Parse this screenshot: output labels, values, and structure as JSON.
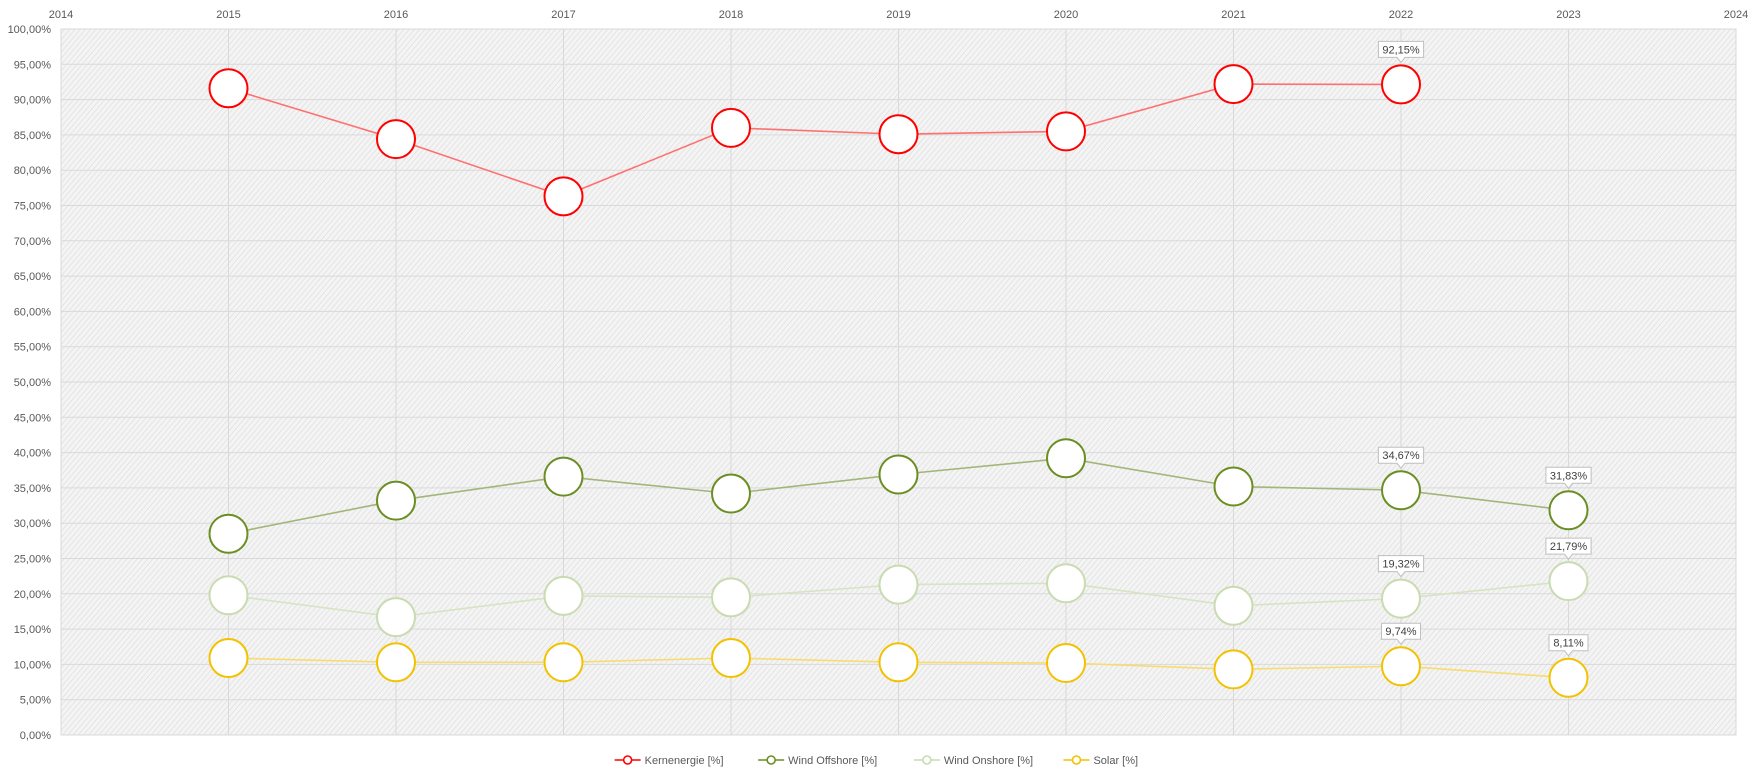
{
  "chart_data": {
    "type": "line",
    "title": "",
    "xlabel": "",
    "ylabel": "",
    "x_ticks": [
      "2014",
      "2015",
      "2016",
      "2017",
      "2018",
      "2019",
      "2020",
      "2021",
      "2022",
      "2023",
      "2024"
    ],
    "xlim": [
      2014,
      2024
    ],
    "ylim": [
      0,
      100
    ],
    "y_ticks": [
      "0,00%",
      "5,00%",
      "10,00%",
      "15,00%",
      "20,00%",
      "25,00%",
      "30,00%",
      "35,00%",
      "40,00%",
      "45,00%",
      "50,00%",
      "55,00%",
      "60,00%",
      "65,00%",
      "70,00%",
      "75,00%",
      "80,00%",
      "85,00%",
      "90,00%",
      "95,00%",
      "100,00%"
    ],
    "grid": true,
    "legend_position": "bottom",
    "series": [
      {
        "name": "Kernenergie [%]",
        "color": "#ff0000",
        "line_color": "#ff7070",
        "points": [
          [
            2015,
            91.6
          ],
          [
            2016,
            84.4
          ],
          [
            2017,
            76.3
          ],
          [
            2018,
            86.0
          ],
          [
            2019,
            85.1
          ],
          [
            2020,
            85.5
          ],
          [
            2021,
            92.2
          ],
          [
            2022,
            92.15
          ]
        ],
        "labels": [
          {
            "x": 2022,
            "text": "92,15%"
          }
        ]
      },
      {
        "name": "Wind Offshore [%]",
        "color": "#6b8e23",
        "line_color": "#a3b67a",
        "points": [
          [
            2015,
            28.5
          ],
          [
            2016,
            33.2
          ],
          [
            2017,
            36.6
          ],
          [
            2018,
            34.2
          ],
          [
            2019,
            36.9
          ],
          [
            2020,
            39.2
          ],
          [
            2021,
            35.2
          ],
          [
            2022,
            34.67
          ],
          [
            2023,
            31.83
          ]
        ],
        "labels": [
          {
            "x": 2022,
            "text": "34,67%"
          },
          {
            "x": 2023,
            "text": "31,83%"
          }
        ]
      },
      {
        "name": "Wind Onshore [%]",
        "color": "#c9dbb0",
        "line_color": "#d6e4c3",
        "points": [
          [
            2015,
            19.8
          ],
          [
            2016,
            16.7
          ],
          [
            2017,
            19.7
          ],
          [
            2018,
            19.5
          ],
          [
            2019,
            21.3
          ],
          [
            2020,
            21.5
          ],
          [
            2021,
            18.3
          ],
          [
            2022,
            19.32
          ],
          [
            2023,
            21.79
          ]
        ],
        "labels": [
          {
            "x": 2022,
            "text": "19,32%"
          },
          {
            "x": 2023,
            "text": "21,79%"
          }
        ]
      },
      {
        "name": "Solar [%]",
        "color": "#f2c200",
        "line_color": "#f7dc70",
        "points": [
          [
            2015,
            10.9
          ],
          [
            2016,
            10.3
          ],
          [
            2017,
            10.3
          ],
          [
            2018,
            10.9
          ],
          [
            2019,
            10.3
          ],
          [
            2020,
            10.2
          ],
          [
            2021,
            9.3
          ],
          [
            2022,
            9.74
          ],
          [
            2023,
            8.11
          ]
        ],
        "labels": [
          {
            "x": 2022,
            "text": "9,74%"
          },
          {
            "x": 2023,
            "text": "8,11%"
          }
        ]
      }
    ]
  }
}
